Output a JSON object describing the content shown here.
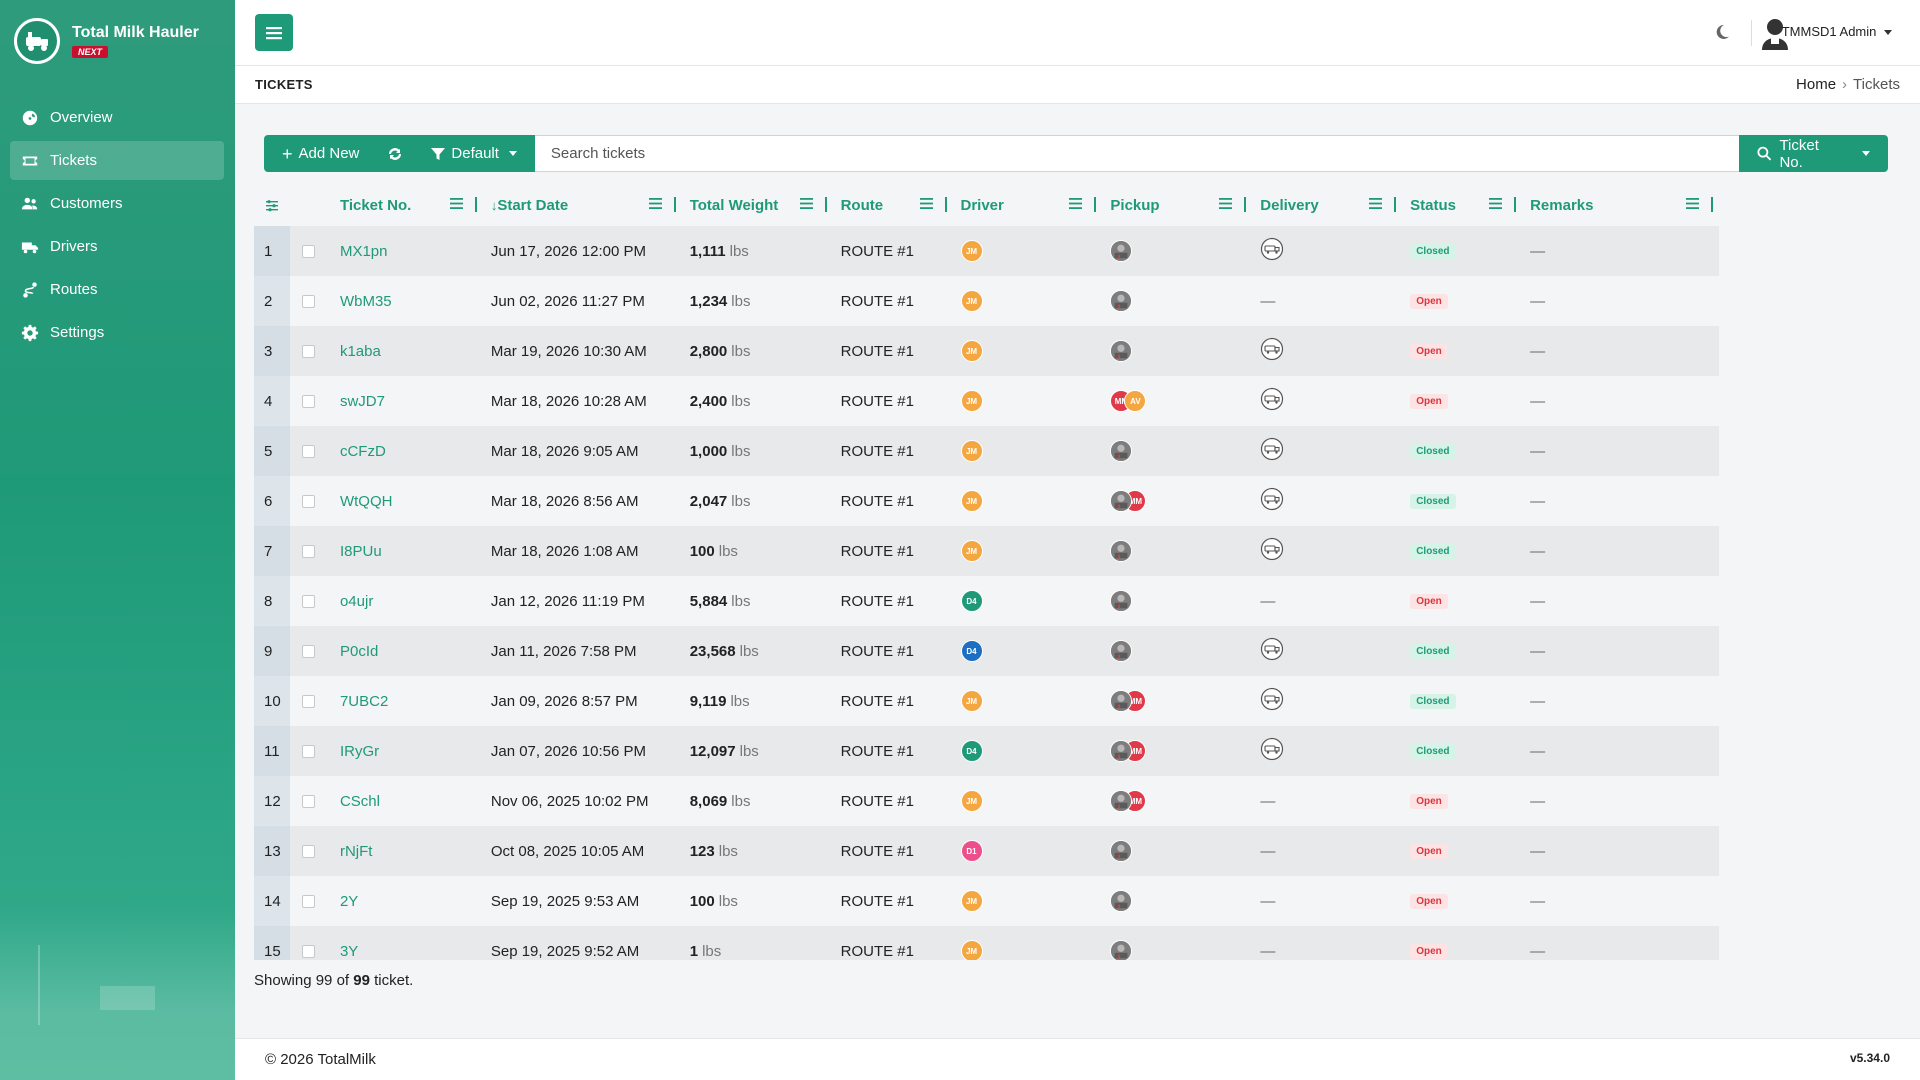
{
  "app": {
    "name": "Total Milk Hauler",
    "tag": "NEXT"
  },
  "sidebar": {
    "items": [
      {
        "label": "Overview",
        "icon": "gauge-icon"
      },
      {
        "label": "Tickets",
        "icon": "ticket-icon",
        "active": true
      },
      {
        "label": "Customers",
        "icon": "users-icon"
      },
      {
        "label": "Drivers",
        "icon": "truck-icon"
      },
      {
        "label": "Routes",
        "icon": "route-icon"
      },
      {
        "label": "Settings",
        "icon": "gear-icon"
      }
    ]
  },
  "topbar": {
    "user_name": "TMMSD1 Admin"
  },
  "page": {
    "title": "TICKETS"
  },
  "breadcrumb": {
    "home": "Home",
    "current": "Tickets"
  },
  "toolbar": {
    "add_new": "Add New",
    "filter": "Default",
    "search_placeholder": "Search tickets",
    "search_field": "Ticket No."
  },
  "table": {
    "columns": [
      "Ticket No.",
      "Start Date",
      "Total Weight",
      "Route",
      "Driver",
      "Pickup",
      "Delivery",
      "Status",
      "Remarks"
    ],
    "weight_unit": "lbs",
    "rows": [
      {
        "n": "1",
        "ticket": "MX1pn",
        "date": "Jun 17, 2026 12:00 PM",
        "weight": "1,111",
        "route": "ROUTE #1",
        "driver": "JM",
        "driver_color": "jm",
        "pickup": [
          "photo"
        ],
        "delivery": true,
        "status": "Closed",
        "remarks": "—"
      },
      {
        "n": "2",
        "ticket": "WbM35",
        "date": "Jun 02, 2026 11:27 PM",
        "weight": "1,234",
        "route": "ROUTE #1",
        "driver": "JM",
        "driver_color": "jm",
        "pickup": [
          "photo"
        ],
        "delivery": false,
        "status": "Open",
        "remarks": "—"
      },
      {
        "n": "3",
        "ticket": "k1aba",
        "date": "Mar 19, 2026 10:30 AM",
        "weight": "2,800",
        "route": "ROUTE #1",
        "driver": "JM",
        "driver_color": "jm",
        "pickup": [
          "photo"
        ],
        "delivery": true,
        "status": "Open",
        "remarks": "—"
      },
      {
        "n": "4",
        "ticket": "swJD7",
        "date": "Mar 18, 2026 10:28 AM",
        "weight": "2,400",
        "route": "ROUTE #1",
        "driver": "JM",
        "driver_color": "jm",
        "pickup": [
          "MM",
          "AV"
        ],
        "delivery": true,
        "status": "Open",
        "remarks": "—"
      },
      {
        "n": "5",
        "ticket": "cCFzD",
        "date": "Mar 18, 2026 9:05 AM",
        "weight": "1,000",
        "route": "ROUTE #1",
        "driver": "JM",
        "driver_color": "jm",
        "pickup": [
          "photo"
        ],
        "delivery": true,
        "status": "Closed",
        "remarks": "—"
      },
      {
        "n": "6",
        "ticket": "WtQQH",
        "date": "Mar 18, 2026 8:56 AM",
        "weight": "2,047",
        "route": "ROUTE #1",
        "driver": "JM",
        "driver_color": "jm",
        "pickup": [
          "photo",
          "MM"
        ],
        "delivery": true,
        "status": "Closed",
        "remarks": "—"
      },
      {
        "n": "7",
        "ticket": "I8PUu",
        "date": "Mar 18, 2026 1:08 AM",
        "weight": "100",
        "route": "ROUTE #1",
        "driver": "JM",
        "driver_color": "jm",
        "pickup": [
          "photo"
        ],
        "delivery": true,
        "status": "Closed",
        "remarks": "—"
      },
      {
        "n": "8",
        "ticket": "o4ujr",
        "date": "Jan 12, 2026 11:19 PM",
        "weight": "5,884",
        "route": "ROUTE #1",
        "driver": "D4",
        "driver_color": "d4g",
        "pickup": [
          "photo"
        ],
        "delivery": false,
        "status": "Open",
        "remarks": "—"
      },
      {
        "n": "9",
        "ticket": "P0cId",
        "date": "Jan 11, 2026 7:58 PM",
        "weight": "23,568",
        "route": "ROUTE #1",
        "driver": "D4",
        "driver_color": "d4b",
        "pickup": [
          "photo"
        ],
        "delivery": true,
        "status": "Closed",
        "remarks": "—"
      },
      {
        "n": "10",
        "ticket": "7UBC2",
        "date": "Jan 09, 2026 8:57 PM",
        "weight": "9,119",
        "route": "ROUTE #1",
        "driver": "JM",
        "driver_color": "jm",
        "pickup": [
          "photo",
          "MM"
        ],
        "delivery": true,
        "status": "Closed",
        "remarks": "—"
      },
      {
        "n": "11",
        "ticket": "IRyGr",
        "date": "Jan 07, 2026 10:56 PM",
        "weight": "12,097",
        "route": "ROUTE #1",
        "driver": "D4",
        "driver_color": "d4g",
        "pickup": [
          "photo",
          "MM"
        ],
        "delivery": true,
        "status": "Closed",
        "remarks": "—"
      },
      {
        "n": "12",
        "ticket": "CSchl",
        "date": "Nov 06, 2025 10:02 PM",
        "weight": "8,069",
        "route": "ROUTE #1",
        "driver": "JM",
        "driver_color": "jm",
        "pickup": [
          "photo",
          "MM"
        ],
        "delivery": false,
        "status": "Open",
        "remarks": "—"
      },
      {
        "n": "13",
        "ticket": "rNjFt",
        "date": "Oct 08, 2025 10:05 AM",
        "weight": "123",
        "route": "ROUTE #1",
        "driver": "D1",
        "driver_color": "d1",
        "pickup": [
          "photo"
        ],
        "delivery": false,
        "status": "Open",
        "remarks": "—"
      },
      {
        "n": "14",
        "ticket": "2Y",
        "date": "Sep 19, 2025 9:53 AM",
        "weight": "100",
        "route": "ROUTE #1",
        "driver": "JM",
        "driver_color": "jm",
        "pickup": [
          "photo"
        ],
        "delivery": false,
        "status": "Open",
        "remarks": "—"
      },
      {
        "n": "15",
        "ticket": "3Y",
        "date": "Sep 19, 2025 9:52 AM",
        "weight": "1",
        "route": "ROUTE #1",
        "driver": "JM",
        "driver_color": "jm",
        "pickup": [
          "photo"
        ],
        "delivery": false,
        "status": "Open",
        "remarks": "—"
      }
    ]
  },
  "showing": {
    "prefix": "Showing",
    "shown": "99",
    "of": "of",
    "total": "99",
    "suffix": "ticket."
  },
  "footer": {
    "copyright": "© 2026 TotalMilk",
    "version": "v5.34.0"
  },
  "colors": {
    "brand": "#1f9a78",
    "closed": "#1f9a78",
    "open": "#d9363e"
  }
}
